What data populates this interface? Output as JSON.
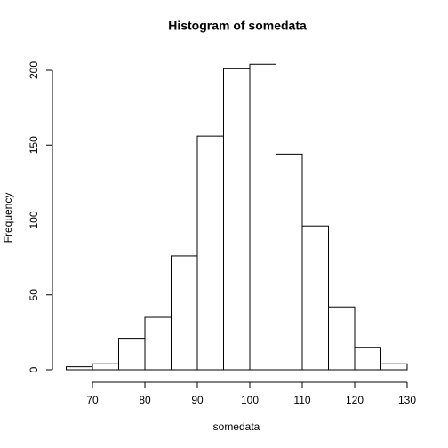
{
  "chart_data": {
    "type": "histogram",
    "title": "Histogram of somedata",
    "x_label": "somedata",
    "y_label": "Frequency",
    "bins": [
      65,
      70,
      75,
      80,
      85,
      90,
      95,
      100,
      105,
      110,
      115,
      120,
      125,
      130
    ],
    "values": [
      2,
      4,
      21,
      35,
      76,
      156,
      201,
      204,
      144,
      96,
      42,
      15,
      4
    ],
    "color": "#ffffff",
    "edge_color": "#000000",
    "xlim": [
      70,
      130
    ],
    "xticks": [
      70,
      80,
      90,
      100,
      110,
      120,
      130
    ],
    "ylim": [
      0,
      200
    ],
    "yticks": [
      0,
      50,
      100,
      150,
      200
    ],
    "grid": false
  }
}
